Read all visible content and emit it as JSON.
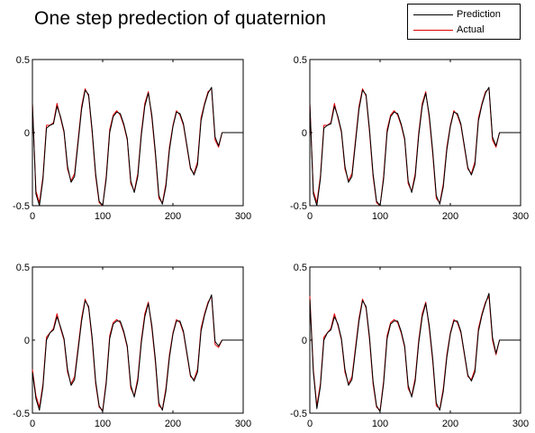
{
  "title": "One step predection of quaternion",
  "legend": [
    {
      "label": "Prediction",
      "color": "#000000"
    },
    {
      "label": "Actual",
      "color": "#e00000"
    }
  ],
  "chart_data": [
    {
      "type": "line",
      "panel": "top-left",
      "xlim": [
        0,
        300
      ],
      "ylim": [
        -0.5,
        0.5
      ],
      "xticks": [
        "0",
        "100",
        "200",
        "300"
      ],
      "yticks": [
        "0.5",
        "0",
        "-0.5"
      ],
      "x": [
        0,
        5,
        10,
        15,
        20,
        25,
        30,
        35,
        40,
        45,
        50,
        55,
        60,
        65,
        70,
        75,
        80,
        85,
        90,
        95,
        100,
        105,
        110,
        115,
        120,
        125,
        130,
        135,
        140,
        145,
        150,
        155,
        160,
        165,
        170,
        175,
        180,
        185,
        190,
        195,
        200,
        205,
        210,
        215,
        220,
        225,
        230,
        235,
        240,
        245,
        250,
        255,
        260,
        265,
        270,
        275,
        280,
        285,
        290,
        295,
        300
      ],
      "series": [
        {
          "name": "Actual",
          "values": [
            0.2,
            -0.4,
            -0.48,
            -0.3,
            0.05,
            0.05,
            0.07,
            0.2,
            0.1,
            0.0,
            -0.25,
            -0.33,
            -0.28,
            -0.05,
            0.18,
            0.3,
            0.25,
            0.0,
            -0.3,
            -0.48,
            -0.5,
            -0.3,
            0.02,
            0.12,
            0.15,
            0.12,
            0.05,
            -0.05,
            -0.35,
            -0.4,
            -0.28,
            0.0,
            0.2,
            0.28,
            0.1,
            -0.15,
            -0.45,
            -0.48,
            -0.35,
            -0.1,
            0.05,
            0.15,
            0.12,
            0.05,
            -0.1,
            -0.25,
            -0.28,
            -0.2,
            0.1,
            0.2,
            0.28,
            0.3,
            -0.05,
            -0.1,
            0.0,
            0.0,
            0.0,
            0.0,
            0.0,
            0.0,
            0.0
          ]
        },
        {
          "name": "Prediction",
          "values": [
            0.2,
            -0.42,
            -0.5,
            -0.32,
            0.03,
            0.05,
            0.06,
            0.18,
            0.11,
            0.01,
            -0.23,
            -0.34,
            -0.3,
            -0.07,
            0.16,
            0.29,
            0.26,
            0.02,
            -0.28,
            -0.47,
            -0.5,
            -0.32,
            0.0,
            0.11,
            0.14,
            0.13,
            0.06,
            -0.04,
            -0.33,
            -0.41,
            -0.3,
            -0.02,
            0.18,
            0.27,
            0.12,
            -0.13,
            -0.43,
            -0.49,
            -0.37,
            -0.12,
            0.04,
            0.14,
            0.13,
            0.06,
            -0.09,
            -0.24,
            -0.29,
            -0.22,
            0.08,
            0.19,
            0.27,
            0.31,
            -0.03,
            -0.09,
            0.0,
            0.0,
            0.0,
            0.0,
            0.0,
            0.0,
            0.0
          ]
        }
      ]
    },
    {
      "type": "line",
      "panel": "top-right",
      "xlim": [
        0,
        300
      ],
      "ylim": [
        -0.5,
        0.5
      ],
      "xticks": [
        "0",
        "100",
        "200",
        "300"
      ],
      "yticks": [
        "0.5",
        "0",
        "-0.5"
      ],
      "x": [
        0,
        5,
        10,
        15,
        20,
        25,
        30,
        35,
        40,
        45,
        50,
        55,
        60,
        65,
        70,
        75,
        80,
        85,
        90,
        95,
        100,
        105,
        110,
        115,
        120,
        125,
        130,
        135,
        140,
        145,
        150,
        155,
        160,
        165,
        170,
        175,
        180,
        185,
        190,
        195,
        200,
        205,
        210,
        215,
        220,
        225,
        230,
        235,
        240,
        245,
        250,
        255,
        260,
        265,
        270,
        275,
        280,
        285,
        290,
        295,
        300
      ],
      "series": [
        {
          "name": "Actual",
          "values": [
            0.2,
            -0.4,
            -0.48,
            -0.3,
            0.05,
            0.05,
            0.07,
            0.2,
            0.1,
            0.0,
            -0.25,
            -0.33,
            -0.28,
            -0.05,
            0.18,
            0.3,
            0.25,
            0.0,
            -0.3,
            -0.48,
            -0.5,
            -0.3,
            0.02,
            0.12,
            0.15,
            0.12,
            0.05,
            -0.05,
            -0.35,
            -0.4,
            -0.28,
            0.0,
            0.2,
            0.28,
            0.1,
            -0.15,
            -0.45,
            -0.48,
            -0.35,
            -0.1,
            0.05,
            0.15,
            0.12,
            0.05,
            -0.1,
            -0.25,
            -0.28,
            -0.2,
            0.1,
            0.2,
            0.28,
            0.3,
            -0.05,
            -0.1,
            0.0,
            0.0,
            0.0,
            0.0,
            0.0,
            0.0,
            0.0
          ]
        },
        {
          "name": "Prediction",
          "values": [
            0.2,
            -0.42,
            -0.5,
            -0.32,
            0.03,
            0.05,
            0.06,
            0.18,
            0.11,
            0.01,
            -0.23,
            -0.34,
            -0.3,
            -0.07,
            0.16,
            0.29,
            0.26,
            0.02,
            -0.28,
            -0.47,
            -0.5,
            -0.32,
            0.0,
            0.11,
            0.14,
            0.13,
            0.06,
            -0.04,
            -0.33,
            -0.41,
            -0.3,
            -0.02,
            0.18,
            0.27,
            0.12,
            -0.13,
            -0.43,
            -0.49,
            -0.37,
            -0.12,
            0.04,
            0.14,
            0.13,
            0.06,
            -0.09,
            -0.24,
            -0.29,
            -0.22,
            0.08,
            0.19,
            0.27,
            0.31,
            -0.03,
            -0.09,
            0.0,
            0.0,
            0.0,
            0.0,
            0.0,
            0.0,
            0.0
          ]
        }
      ]
    },
    {
      "type": "line",
      "panel": "bottom-left",
      "xlim": [
        0,
        300
      ],
      "ylim": [
        -0.5,
        0.5
      ],
      "xticks": [
        "0",
        "100",
        "200",
        "300"
      ],
      "yticks": [
        "0.5",
        "0",
        "-0.5"
      ],
      "x": [
        0,
        5,
        10,
        15,
        20,
        25,
        30,
        35,
        40,
        45,
        50,
        55,
        60,
        65,
        70,
        75,
        80,
        85,
        90,
        95,
        100,
        105,
        110,
        115,
        120,
        125,
        130,
        135,
        140,
        145,
        150,
        155,
        160,
        165,
        170,
        175,
        180,
        185,
        190,
        195,
        200,
        205,
        210,
        215,
        220,
        225,
        230,
        235,
        240,
        245,
        250,
        255,
        260,
        265,
        270,
        275,
        280,
        285,
        290,
        295,
        300
      ],
      "series": [
        {
          "name": "Actual",
          "values": [
            -0.2,
            -0.38,
            -0.46,
            -0.3,
            0.02,
            0.05,
            0.08,
            0.18,
            0.08,
            0.0,
            -0.22,
            -0.3,
            -0.25,
            -0.05,
            0.15,
            0.28,
            0.22,
            0.0,
            -0.3,
            -0.46,
            -0.48,
            -0.28,
            0.03,
            0.12,
            0.14,
            0.12,
            0.05,
            -0.05,
            -0.33,
            -0.38,
            -0.26,
            0.0,
            0.18,
            0.26,
            0.08,
            -0.15,
            -0.45,
            -0.47,
            -0.33,
            -0.1,
            0.05,
            0.14,
            0.12,
            0.05,
            -0.1,
            -0.25,
            -0.27,
            -0.2,
            0.08,
            0.18,
            0.26,
            0.3,
            -0.03,
            -0.05,
            0.0,
            0.0,
            0.0,
            0.0,
            0.0,
            0.0,
            0.0
          ]
        },
        {
          "name": "Prediction",
          "values": [
            -0.22,
            -0.4,
            -0.48,
            -0.32,
            0.0,
            0.05,
            0.07,
            0.16,
            0.09,
            0.01,
            -0.2,
            -0.31,
            -0.27,
            -0.07,
            0.13,
            0.27,
            0.23,
            0.02,
            -0.28,
            -0.45,
            -0.49,
            -0.3,
            0.01,
            0.11,
            0.13,
            0.13,
            0.06,
            -0.04,
            -0.31,
            -0.39,
            -0.28,
            -0.02,
            0.16,
            0.25,
            0.1,
            -0.13,
            -0.43,
            -0.48,
            -0.35,
            -0.12,
            0.04,
            0.13,
            0.13,
            0.06,
            -0.09,
            -0.24,
            -0.28,
            -0.22,
            0.06,
            0.17,
            0.25,
            0.31,
            -0.01,
            -0.04,
            0.0,
            0.0,
            0.0,
            0.0,
            0.0,
            0.0,
            0.0
          ]
        }
      ]
    },
    {
      "type": "line",
      "panel": "bottom-right",
      "xlim": [
        0,
        300
      ],
      "ylim": [
        -0.5,
        0.5
      ],
      "xticks": [
        "0",
        "100",
        "200",
        "300"
      ],
      "yticks": [
        "0.5",
        "0",
        "-0.5"
      ],
      "x": [
        0,
        5,
        10,
        15,
        20,
        25,
        30,
        35,
        40,
        45,
        50,
        55,
        60,
        65,
        70,
        75,
        80,
        85,
        90,
        95,
        100,
        105,
        110,
        115,
        120,
        125,
        130,
        135,
        140,
        145,
        150,
        155,
        160,
        165,
        170,
        175,
        180,
        185,
        190,
        195,
        200,
        205,
        210,
        215,
        220,
        225,
        230,
        235,
        240,
        245,
        250,
        255,
        260,
        265,
        270,
        275,
        280,
        285,
        290,
        295,
        300
      ],
      "series": [
        {
          "name": "Actual",
          "values": [
            0.3,
            -0.2,
            -0.45,
            -0.3,
            0.02,
            0.05,
            0.08,
            0.18,
            0.1,
            0.0,
            -0.22,
            -0.3,
            -0.25,
            -0.05,
            0.15,
            0.28,
            0.22,
            0.0,
            -0.3,
            -0.46,
            -0.48,
            -0.28,
            0.03,
            0.12,
            0.14,
            0.12,
            0.05,
            -0.05,
            -0.33,
            -0.38,
            -0.26,
            0.0,
            0.18,
            0.26,
            0.08,
            -0.15,
            -0.45,
            -0.47,
            -0.33,
            -0.1,
            0.05,
            0.14,
            0.12,
            0.05,
            -0.1,
            -0.25,
            -0.27,
            -0.2,
            0.08,
            0.18,
            0.26,
            0.3,
            0.0,
            -0.1,
            0.0,
            0.0,
            0.0,
            0.0,
            0.0,
            0.0,
            0.0
          ]
        },
        {
          "name": "Prediction",
          "values": [
            0.28,
            -0.22,
            -0.47,
            -0.32,
            0.0,
            0.05,
            0.07,
            0.16,
            0.11,
            0.01,
            -0.2,
            -0.31,
            -0.27,
            -0.07,
            0.13,
            0.27,
            0.23,
            0.02,
            -0.28,
            -0.45,
            -0.49,
            -0.3,
            0.01,
            0.11,
            0.13,
            0.13,
            0.06,
            -0.04,
            -0.31,
            -0.39,
            -0.28,
            -0.02,
            0.16,
            0.25,
            0.1,
            -0.13,
            -0.43,
            -0.48,
            -0.35,
            -0.12,
            0.04,
            0.13,
            0.13,
            0.06,
            -0.09,
            -0.24,
            -0.28,
            -0.22,
            0.06,
            0.17,
            0.25,
            0.32,
            0.02,
            -0.09,
            0.0,
            0.0,
            0.0,
            0.0,
            0.0,
            0.0,
            0.0
          ]
        }
      ]
    }
  ]
}
